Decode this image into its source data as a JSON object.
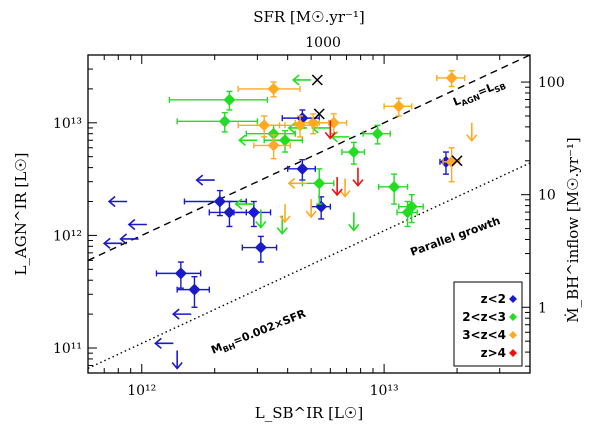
{
  "chart_data": {
    "type": "scatter",
    "top_axis_title": "SFR [M☉.yr⁻¹]",
    "top_tick_label": "1000",
    "xlabel": "L_SB^IR [L☉]",
    "ylabel": "L_AGN^IR [L☉]",
    "right_ylabel": "Ṁ_BH^inflow [M☉.yr⁻¹]",
    "xlim": [
      600000000000.0,
      40000000000000.0
    ],
    "ylim": [
      60000000000.0,
      40000000000000.0
    ],
    "xticks": [
      {
        "value": 1000000000000.0,
        "label": "10¹²"
      },
      {
        "value": 10000000000000.0,
        "label": "10¹³"
      }
    ],
    "yticks": [
      {
        "value": 100000000000.0,
        "label": "10¹¹"
      },
      {
        "value": 1000000000000.0,
        "label": "10¹²"
      },
      {
        "value": 10000000000000.0,
        "label": "10¹³"
      }
    ],
    "right_ticks": [
      {
        "value": 1,
        "label": "1"
      },
      {
        "value": 10,
        "label": "10"
      },
      {
        "value": 100,
        "label": "100"
      }
    ],
    "lines": [
      {
        "name": "equality",
        "label_main": "L",
        "label_sup": "IR",
        "label_sub1": "AGN",
        "label_mid": "=L",
        "label_sub2": "SB",
        "dash": "dashed",
        "factor": 1.0
      },
      {
        "name": "parallel",
        "label": "Parallel growth",
        "label2_main": "M",
        "label2_sup": "inflow",
        "label2_sub": "BH",
        "label2_rest": "=0.002×SFR",
        "dash": "dotted",
        "factor": 0.11
      }
    ],
    "series": [
      {
        "name": "z<2",
        "color": "#1a1acc",
        "points": [
          {
            "x": 2300000000000.0,
            "y": 1600000000000.0,
            "xerr": 400000000000.0,
            "yerr": 400000000000.0
          },
          {
            "x": 2100000000000.0,
            "y": 2000000000000.0,
            "xerr": 600000000000.0,
            "yerr": 500000000000.0
          },
          {
            "x": 2900000000000.0,
            "y": 1600000000000.0,
            "xerr": 500000000000.0,
            "yerr": 400000000000.0
          },
          {
            "x": 3100000000000.0,
            "y": 780000000000.0,
            "xerr": 500000000000.0,
            "yerr": 200000000000.0
          },
          {
            "x": 5500000000000.0,
            "y": 1800000000000.0,
            "xerr": 500000000000.0,
            "yerr": 400000000000.0
          },
          {
            "x": 4600000000000.0,
            "y": 3900000000000.0,
            "xerr": 600000000000.0,
            "yerr": 800000000000.0
          },
          {
            "x": 4600000000000.0,
            "y": 11000000000000.0,
            "xerr": 800000000000.0,
            "yerr": 2000000000000.0
          },
          {
            "x": 18000000000000.0,
            "y": 4500000000000.0,
            "xerr": 1000000000000.0,
            "yerr": 1000000000000.0
          },
          {
            "x": 1450000000000.0,
            "y": 460000000000.0,
            "xerr": 300000000000.0,
            "yerr": 120000000000.0
          },
          {
            "x": 1650000000000.0,
            "y": 330000000000.0,
            "xerr": 250000000000.0,
            "yerr": 100000000000.0
          }
        ],
        "upper_x": [
          {
            "x": 870000000000.0,
            "y": 2000000000000.0
          },
          {
            "x": 1050000000000.0,
            "y": 1250000000000.0
          },
          {
            "x": 970000000000.0,
            "y": 930000000000.0
          },
          {
            "x": 830000000000.0,
            "y": 850000000000.0
          },
          {
            "x": 2000000000000.0,
            "y": 3100000000000.0
          },
          {
            "x": 1600000000000.0,
            "y": 200000000000.0
          },
          {
            "x": 1350000000000.0,
            "y": 110000000000.0
          }
        ],
        "upper_y": [
          {
            "x": 1400000000000.0,
            "y": 95000000000.0
          }
        ]
      },
      {
        "name": "2<z<3",
        "color": "#22dd22",
        "points": [
          {
            "x": 2300000000000.0,
            "y": 16000000000000.0,
            "xerr": 1000000000000.0,
            "yerr": 3000000000000.0
          },
          {
            "x": 2200000000000.0,
            "y": 10300000000000.0,
            "xerr": 800000000000.0,
            "yerr": 2000000000000.0
          },
          {
            "x": 3500000000000.0,
            "y": 8000000000000.0,
            "xerr": 800000000000.0,
            "yerr": 1500000000000.0
          },
          {
            "x": 3900000000000.0,
            "y": 7000000000000.0,
            "xerr": 700000000000.0,
            "yerr": 1500000000000.0
          },
          {
            "x": 5400000000000.0,
            "y": 2900000000000.0,
            "xerr": 800000000000.0,
            "yerr": 1000000000000.0
          },
          {
            "x": 7500000000000.0,
            "y": 5500000000000.0,
            "xerr": 800000000000.0,
            "yerr": 1200000000000.0
          },
          {
            "x": 9400000000000.0,
            "y": 8000000000000.0,
            "xerr": 1200000000000.0,
            "yerr": 1500000000000.0
          },
          {
            "x": 11000000000000.0,
            "y": 2700000000000.0,
            "xerr": 1500000000000.0,
            "yerr": 800000000000.0
          },
          {
            "x": 13000000000000.0,
            "y": 1800000000000.0,
            "xerr": 1500000000000.0,
            "yerr": 500000000000.0
          },
          {
            "x": 12500000000000.0,
            "y": 1600000000000.0,
            "xerr": 1200000000000.0,
            "yerr": 400000000000.0
          }
        ],
        "upper_x": [
          {
            "x": 3000000000000.0,
            "y": 7000000000000.0
          },
          {
            "x": 4800000000000.0,
            "y": 9000000000000.0
          },
          {
            "x": 6000000000000.0,
            "y": 9000000000000.0
          },
          {
            "x": 7200000000000.0,
            "y": 7500000000000.0
          },
          {
            "x": 5000000000000.0,
            "y": 24000000000000.0
          },
          {
            "x": 2900000000000.0,
            "y": 1900000000000.0
          }
        ],
        "upper_y": [
          {
            "x": 3100000000000.0,
            "y": 1700000000000.0
          },
          {
            "x": 3800000000000.0,
            "y": 1500000000000.0
          },
          {
            "x": 7500000000000.0,
            "y": 1600000000000.0
          }
        ]
      },
      {
        "name": "3<z<4",
        "color": "#ffaa22",
        "points": [
          {
            "x": 3500000000000.0,
            "y": 20000000000000.0,
            "xerr": 1000000000000.0,
            "yerr": 3000000000000.0
          },
          {
            "x": 3200000000000.0,
            "y": 9500000000000.0,
            "xerr": 700000000000.0,
            "yerr": 2000000000000.0
          },
          {
            "x": 3500000000000.0,
            "y": 6300000000000.0,
            "xerr": 600000000000.0,
            "yerr": 1500000000000.0
          },
          {
            "x": 4500000000000.0,
            "y": 9500000000000.0,
            "xerr": 800000000000.0,
            "yerr": 2000000000000.0
          },
          {
            "x": 5100000000000.0,
            "y": 10000000000000.0,
            "xerr": 800000000000.0,
            "yerr": 2000000000000.0
          },
          {
            "x": 6200000000000.0,
            "y": 10000000000000.0,
            "xerr": 800000000000.0,
            "yerr": 2000000000000.0
          },
          {
            "x": 11500000000000.0,
            "y": 14000000000000.0,
            "xerr": 1500000000000.0,
            "yerr": 2500000000000.0
          },
          {
            "x": 19000000000000.0,
            "y": 25000000000000.0,
            "xerr": 2500000000000.0,
            "yerr": 4000000000000.0
          },
          {
            "x": 19000000000000.0,
            "y": 4500000000000.0,
            "xerr": 1500000000000.0,
            "yerr": 1500000000000.0
          }
        ],
        "upper_x": [
          {
            "x": 4800000000000.0,
            "y": 2900000000000.0
          }
        ],
        "upper_y": [
          {
            "x": 3900000000000.0,
            "y": 1900000000000.0
          },
          {
            "x": 5000000000000.0,
            "y": 2100000000000.0
          },
          {
            "x": 6900000000000.0,
            "y": 3200000000000.0
          },
          {
            "x": 23000000000000.0,
            "y": 10000000000000.0
          }
        ]
      },
      {
        "name": "z>4",
        "color": "#ee1111",
        "points": [],
        "upper_x": [],
        "upper_y": [
          {
            "x": 6000000000000.0,
            "y": 10500000000000.0
          },
          {
            "x": 6400000000000.0,
            "y": 3300000000000.0
          },
          {
            "x": 7800000000000.0,
            "y": 4000000000000.0
          }
        ]
      }
    ],
    "crosses": [
      {
        "x": 5300000000000.0,
        "y": 24000000000000.0
      },
      {
        "x": 5400000000000.0,
        "y": 12000000000000.0
      },
      {
        "x": 20000000000000.0,
        "y": 4600000000000.0
      }
    ],
    "legend": {
      "placement": "bottom-right",
      "entries": [
        "z<2",
        "2<z<3",
        "3<z<4",
        "z>4"
      ]
    }
  }
}
